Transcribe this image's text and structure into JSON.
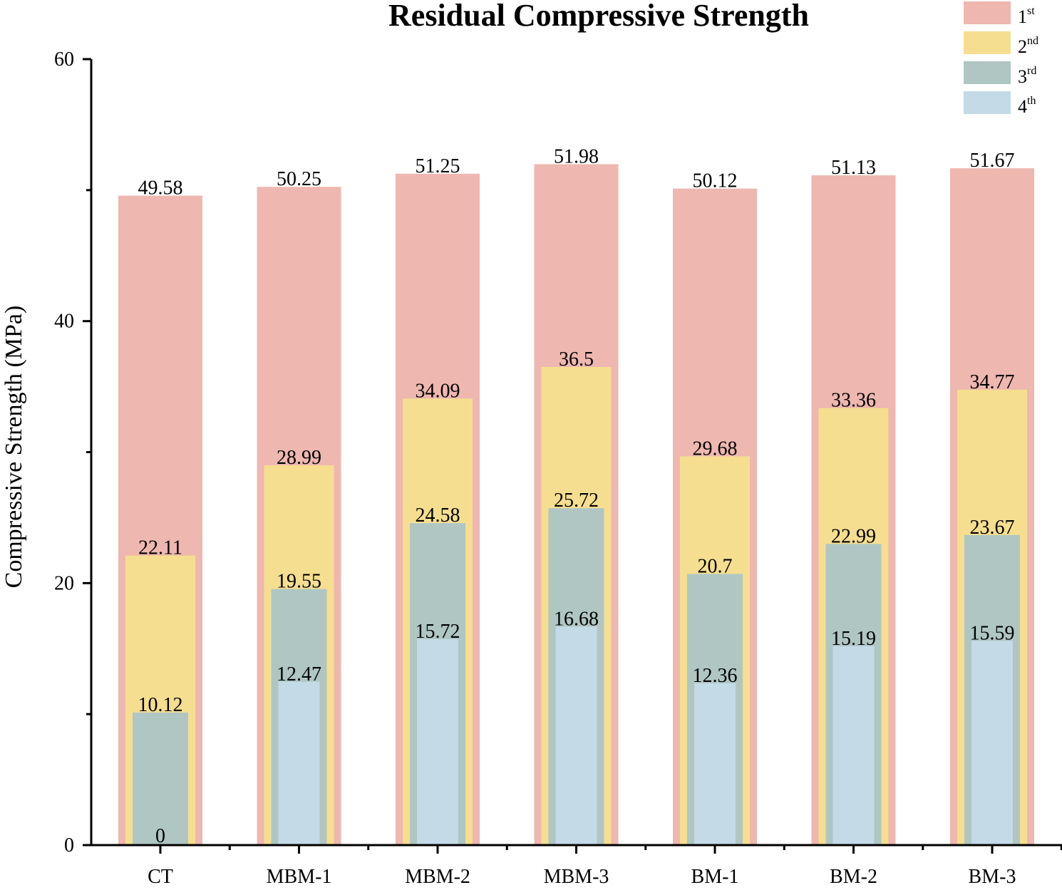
{
  "chart_data": {
    "type": "bar",
    "title": "Residual Compressive Strength",
    "xlabel": "",
    "ylabel": "Compressive Strength (MPa)",
    "ylim": [
      0,
      60
    ],
    "yticks": [
      0,
      20,
      40,
      60
    ],
    "categories": [
      "CT",
      "MBM-1",
      "MBM-2",
      "MBM-3",
      "BM-1",
      "BM-2",
      "BM-3"
    ],
    "series": [
      {
        "name": "1st",
        "base": "1",
        "sup": "st",
        "color": "#EEB7B0",
        "values": [
          49.58,
          50.25,
          51.25,
          51.98,
          50.12,
          51.13,
          51.67
        ]
      },
      {
        "name": "2nd",
        "base": "2",
        "sup": "nd",
        "color": "#F5DE90",
        "values": [
          22.11,
          28.99,
          34.09,
          36.5,
          29.68,
          33.36,
          34.77
        ]
      },
      {
        "name": "3rd",
        "base": "3",
        "sup": "rd",
        "color": "#AFC6C3",
        "values": [
          10.12,
          19.55,
          24.58,
          25.72,
          20.7,
          22.99,
          23.67
        ]
      },
      {
        "name": "4th",
        "base": "4",
        "sup": "th",
        "color": "#C4DAE7",
        "values": [
          0,
          12.47,
          15.72,
          16.68,
          12.36,
          15.19,
          15.59
        ]
      }
    ],
    "labels": [
      [
        "49.58",
        "50.25",
        "51.25",
        "51.98",
        "50.12",
        "51.13",
        "51.67"
      ],
      [
        "22.11",
        "28.99",
        "34.09",
        "36.5",
        "29.68",
        "33.36",
        "34.77"
      ],
      [
        "10.12",
        "19.55",
        "24.58",
        "25.72",
        "20.7",
        "22.99",
        "23.67"
      ],
      [
        "0",
        "12.47",
        "15.72",
        "16.68",
        "12.36",
        "15.19",
        "15.59"
      ]
    ],
    "legend_position": "top-right",
    "style": "overlapping nested bars"
  }
}
